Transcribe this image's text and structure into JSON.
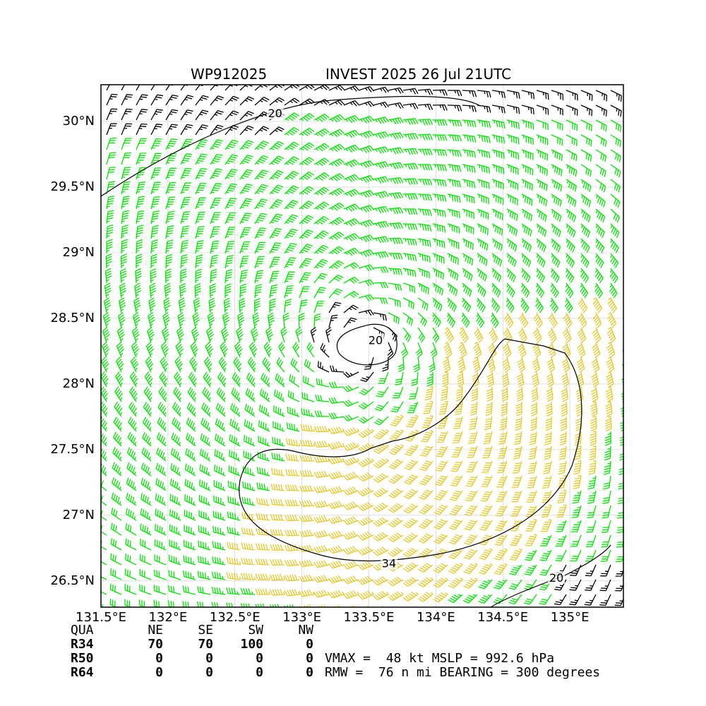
{
  "title": {
    "left": "WP912025",
    "right": "INVEST 2025 26 Jul 21UTC"
  },
  "map": {
    "lon_range": [
      131.5,
      135.4
    ],
    "lat_range": [
      26.3,
      30.28
    ],
    "center": {
      "lon": 133.4,
      "lat": 28.3
    },
    "x_ticks": [
      {
        "value": 131.5,
        "label": "131.5°E"
      },
      {
        "value": 132.0,
        "label": "132°E"
      },
      {
        "value": 132.5,
        "label": "132.5°E"
      },
      {
        "value": 133.0,
        "label": "133°E"
      },
      {
        "value": 133.5,
        "label": "133.5°E"
      },
      {
        "value": 134.0,
        "label": "134°E"
      },
      {
        "value": 134.5,
        "label": "134.5°E"
      },
      {
        "value": 135.0,
        "label": "135°E"
      }
    ],
    "y_ticks": [
      {
        "value": 30.0,
        "label": "30°N"
      },
      {
        "value": 29.5,
        "label": "29.5°N"
      },
      {
        "value": 29.0,
        "label": "29°N"
      },
      {
        "value": 28.5,
        "label": "28.5°N"
      },
      {
        "value": 28.0,
        "label": "28°N"
      },
      {
        "value": 27.5,
        "label": "27.5°N"
      },
      {
        "value": 27.0,
        "label": "27°N"
      },
      {
        "value": 26.5,
        "label": "26.5°N"
      }
    ],
    "contour_labels": [
      {
        "text": "20",
        "lon": 132.8,
        "lat": 30.06
      },
      {
        "text": "20",
        "lon": 133.55,
        "lat": 28.33
      },
      {
        "text": "34",
        "lon": 133.65,
        "lat": 26.63
      },
      {
        "text": "20",
        "lon": 134.9,
        "lat": 26.52
      }
    ],
    "colors": {
      "barb_low": "#000000",
      "barb_gale": "#00e600",
      "barb_storm": "#e6c828",
      "contour": "#000000",
      "grid": "#cccccc"
    }
  },
  "wind_radii": {
    "header": [
      "QUA",
      "NE",
      "SE",
      "SW",
      "NW"
    ],
    "rows": [
      {
        "label": "R34",
        "values": [
          "70",
          "70",
          "100",
          "0"
        ]
      },
      {
        "label": "R50",
        "values": [
          "0",
          "0",
          "0",
          "0"
        ]
      },
      {
        "label": "R64",
        "values": [
          "0",
          "0",
          "0",
          "0"
        ]
      }
    ]
  },
  "info": {
    "line1": "VMAX =  48 kt MSLP = 992.6 hPa",
    "line2": "RMW =  76 n mi BEARING = 300 degrees"
  }
}
